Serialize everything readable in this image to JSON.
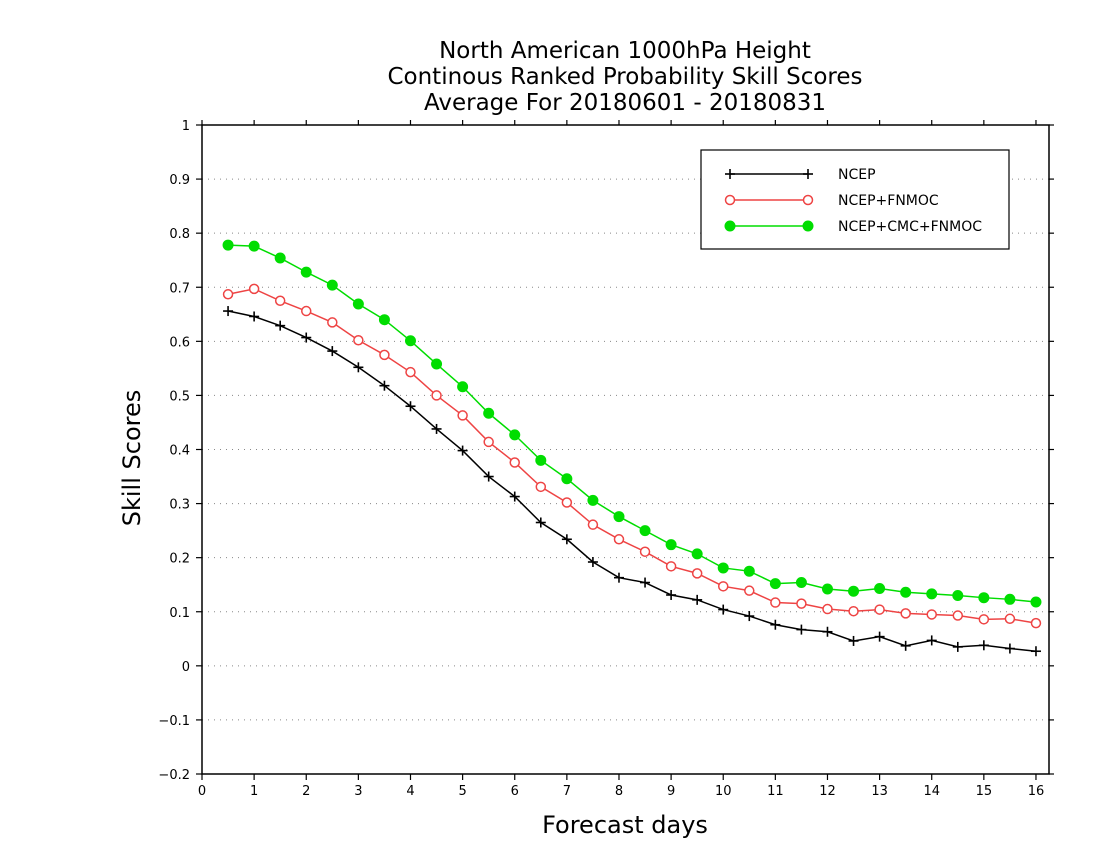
{
  "chart_data": {
    "type": "line",
    "title": [
      "North American 1000hPa Height",
      "Continous Ranked Probability Skill Scores",
      "Average For 20180601 - 20180831"
    ],
    "xlabel": "Forecast days",
    "ylabel": "Skill Scores",
    "xlim": [
      0,
      16.25
    ],
    "ylim": [
      -0.2,
      1
    ],
    "xticks": [
      0,
      1,
      2,
      3,
      4,
      5,
      6,
      7,
      8,
      9,
      10,
      11,
      12,
      13,
      14,
      15,
      16
    ],
    "xtick_labels": [
      "0",
      "1",
      "2",
      "3",
      "4",
      "5",
      "6",
      "7",
      "8",
      "9",
      "10",
      "11",
      "12",
      "13",
      "14",
      "15",
      "16"
    ],
    "yticks": [
      -0.2,
      -0.1,
      0,
      0.1,
      0.2,
      0.3,
      0.4,
      0.5,
      0.6,
      0.7,
      0.8,
      0.9,
      1
    ],
    "ytick_labels": [
      "−0.2",
      "−0.1",
      "0",
      "0.1",
      "0.2",
      "0.3",
      "0.4",
      "0.5",
      "0.6",
      "0.7",
      "0.8",
      "0.9",
      "1"
    ],
    "grid": "horizontal dotted",
    "legend_position": "top-right",
    "x": [
      0.5,
      1,
      1.5,
      2,
      2.5,
      3,
      3.5,
      4,
      4.5,
      5,
      5.5,
      6,
      6.5,
      7,
      7.5,
      8,
      8.5,
      9,
      9.5,
      10,
      10.5,
      11,
      11.5,
      12,
      12.5,
      13,
      13.5,
      14,
      14.5,
      15,
      15.5,
      16
    ],
    "series": [
      {
        "name": "NCEP",
        "color": "#000000",
        "marker": "plus",
        "values": [
          0.656,
          0.646,
          0.629,
          0.607,
          0.582,
          0.552,
          0.518,
          0.48,
          0.438,
          0.398,
          0.35,
          0.313,
          0.265,
          0.234,
          0.192,
          0.163,
          0.154,
          0.131,
          0.122,
          0.104,
          0.092,
          0.076,
          0.067,
          0.063,
          0.046,
          0.054,
          0.037,
          0.047,
          0.035,
          0.038,
          0.032,
          0.027
        ]
      },
      {
        "name": "NCEP+FNMOC",
        "color": "#ee4444",
        "marker": "open-circle",
        "values": [
          0.687,
          0.697,
          0.675,
          0.656,
          0.635,
          0.602,
          0.575,
          0.543,
          0.5,
          0.463,
          0.414,
          0.376,
          0.331,
          0.302,
          0.261,
          0.234,
          0.211,
          0.184,
          0.171,
          0.147,
          0.139,
          0.117,
          0.115,
          0.105,
          0.101,
          0.104,
          0.097,
          0.095,
          0.093,
          0.086,
          0.087,
          0.079
        ]
      },
      {
        "name": "NCEP+CMC+FNMOC",
        "color": "#00dd00",
        "marker": "filled-circle",
        "values": [
          0.778,
          0.776,
          0.754,
          0.728,
          0.704,
          0.669,
          0.64,
          0.601,
          0.558,
          0.516,
          0.467,
          0.427,
          0.38,
          0.346,
          0.306,
          0.276,
          0.25,
          0.224,
          0.207,
          0.181,
          0.175,
          0.152,
          0.154,
          0.142,
          0.138,
          0.143,
          0.136,
          0.133,
          0.13,
          0.126,
          0.123,
          0.118
        ]
      }
    ]
  }
}
